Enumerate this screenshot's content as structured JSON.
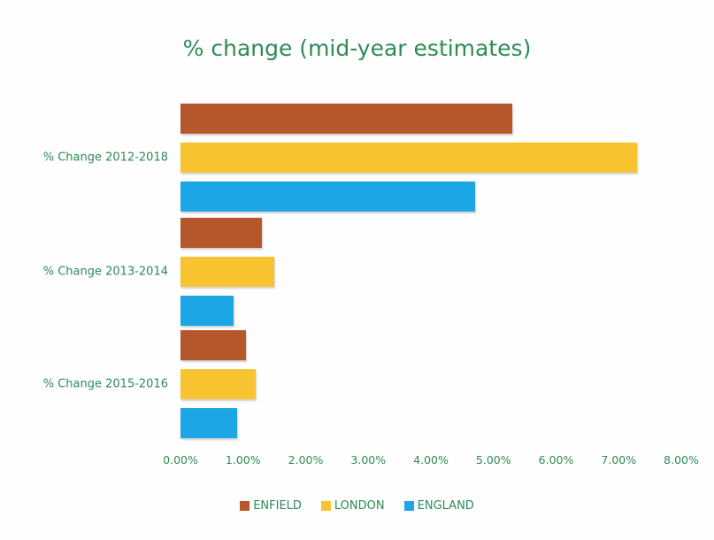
{
  "chart_data": {
    "type": "bar",
    "orientation": "horizontal",
    "title": "% change (mid-year estimates)",
    "categories": [
      "% Change 2012-2018",
      "% Change 2013-2014",
      "% Change 2015-2016"
    ],
    "series": [
      {
        "name": "ENFIELD",
        "color": "#b5562b",
        "values": [
          5.3,
          1.3,
          1.05
        ]
      },
      {
        "name": "LONDON",
        "color": "#f7c331",
        "values": [
          7.3,
          1.5,
          1.2
        ]
      },
      {
        "name": "ENGLAND",
        "color": "#1da6e5",
        "values": [
          4.7,
          0.85,
          0.9
        ]
      }
    ],
    "xlim": [
      0,
      8
    ],
    "x_ticks": [
      "0.00%",
      "1.00%",
      "2.00%",
      "3.00%",
      "4.00%",
      "5.00%",
      "6.00%",
      "7.00%",
      "8.00%"
    ],
    "grid": false,
    "legend_position": "bottom"
  }
}
